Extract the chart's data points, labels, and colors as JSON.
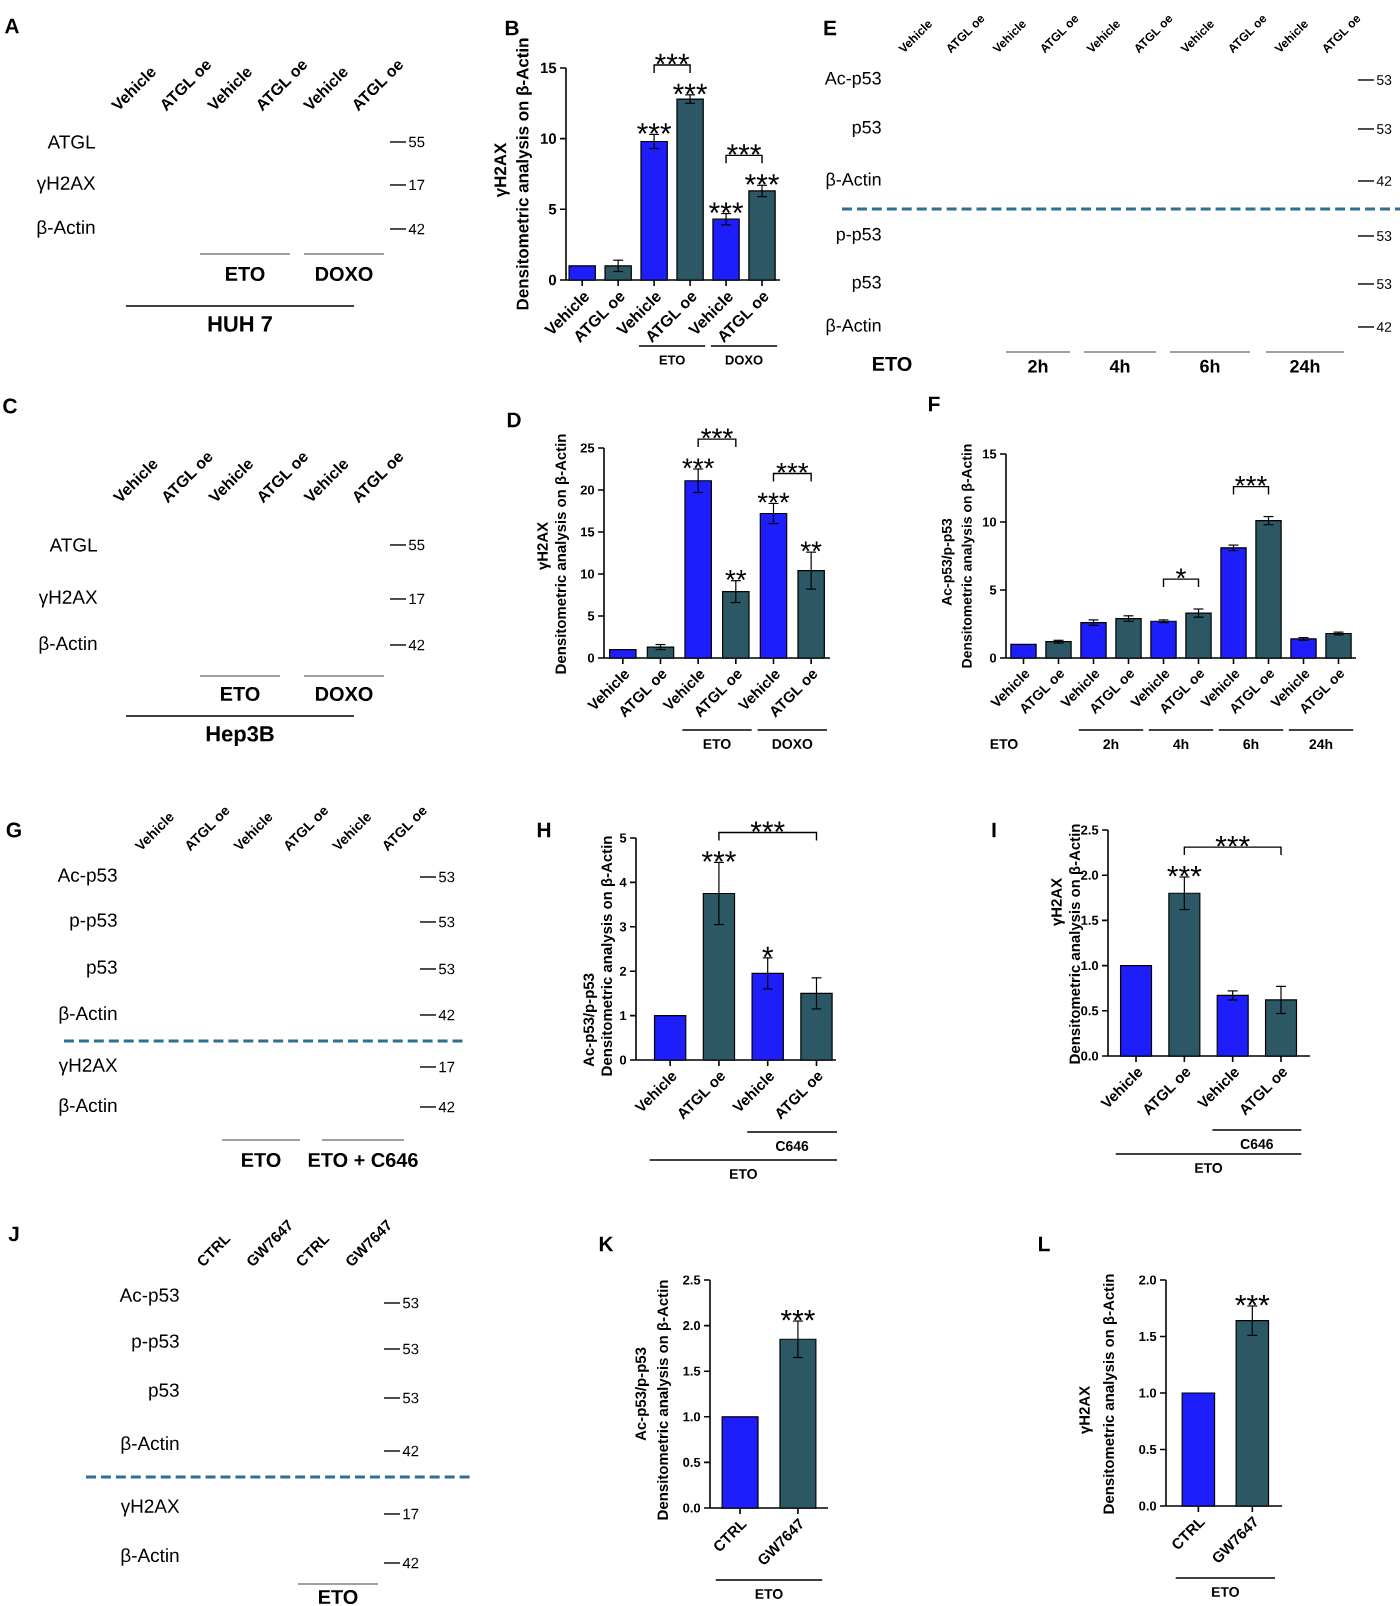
{
  "chart_data": [
    {
      "type": "other",
      "title": "A",
      "categories": [
        "Vehicle",
        "ATGL oe",
        "Vehicle",
        "ATGL oe",
        "Vehicle",
        "ATGL oe"
      ],
      "y_categories": [
        "ATGL",
        "γH2AX",
        "β-Actin"
      ],
      "y2_categories": [
        "55",
        "17",
        "42"
      ],
      "annotations": [
        "ETO",
        "DOXO",
        "HUH 7"
      ]
    },
    {
      "type": "bar",
      "title": "B",
      "ylabel": "Densitometric analysis on β-Actin",
      "categories": [
        "Vehicle",
        "ATGL oe",
        "Vehicle",
        "ATGL oe",
        "Vehicle",
        "ATGL oe"
      ],
      "values": [
        1.0,
        1.0,
        9.8,
        12.8,
        4.3,
        6.3
      ],
      "errors": [
        null,
        0.4,
        0.5,
        0.3,
        0.4,
        0.4
      ],
      "colors": [
        "#1e1efa",
        "#2b5864",
        "#1e1efa",
        "#2b5864",
        "#1e1efa",
        "#2b5864"
      ],
      "ylim": [
        0,
        15
      ],
      "yticks": [
        0,
        5,
        10,
        15
      ],
      "annotations": [
        "γH2AX",
        "***",
        "***",
        "***",
        "***",
        "***",
        "***",
        "ETO",
        "DOXO"
      ]
    },
    {
      "type": "other",
      "title": "E",
      "categories": [
        "Vehicle",
        "ATGL oe",
        "Vehicle",
        "ATGL oe",
        "Vehicle",
        "ATGL oe",
        "Vehicle",
        "ATGL oe",
        "Vehicle",
        "ATGL oe"
      ],
      "y_categories": [
        "Ac-p53",
        "p53",
        "β-Actin",
        "p-p53",
        "p53",
        "β-Actin"
      ],
      "y2_categories": [
        "53",
        "53",
        "42",
        "53",
        "53",
        "42"
      ],
      "annotations": [
        "ETO",
        "2h",
        "4h",
        "6h",
        "24h"
      ]
    },
    {
      "type": "other",
      "title": "C",
      "categories": [
        "Vehicle",
        "ATGL oe",
        "Vehicle",
        "ATGL oe",
        "Vehicle",
        "ATGL oe"
      ],
      "y_categories": [
        "ATGL",
        "γH2AX",
        "β-Actin"
      ],
      "y2_categories": [
        "55",
        "17",
        "42"
      ],
      "annotations": [
        "ETO",
        "DOXO",
        "Hep3B"
      ]
    },
    {
      "type": "bar",
      "title": "D",
      "ylabel": "Densitometric analysis on β-Actin",
      "categories": [
        "Vehicle",
        "ATGL oe",
        "Vehicle",
        "ATGL oe",
        "Vehicle",
        "ATGL oe"
      ],
      "values": [
        1.0,
        1.3,
        21.1,
        7.9,
        17.2,
        10.4
      ],
      "errors": [
        null,
        0.3,
        1.4,
        1.3,
        1.2,
        2.2
      ],
      "colors": [
        "#1e1efa",
        "#2b5864",
        "#1e1efa",
        "#2b5864",
        "#1e1efa",
        "#2b5864"
      ],
      "ylim": [
        0,
        25
      ],
      "yticks": [
        0,
        5,
        10,
        15,
        20,
        25
      ],
      "annotations": [
        "γH2AX",
        "***",
        "***",
        "**",
        "***",
        "***",
        "**",
        "ETO",
        "DOXO"
      ]
    },
    {
      "type": "bar",
      "title": "F",
      "ylabel": "Densitometric analysis on β-Actin",
      "categories": [
        "Vehicle",
        "ATGL oe",
        "Vehicle",
        "ATGL oe",
        "Vehicle",
        "ATGL oe",
        "Vehicle",
        "ATGL oe",
        "Vehicle",
        "ATGL oe"
      ],
      "values": [
        1.0,
        1.2,
        2.6,
        2.9,
        2.7,
        3.3,
        8.1,
        10.1,
        1.4,
        1.8
      ],
      "errors": [
        null,
        0.1,
        0.2,
        0.2,
        0.1,
        0.3,
        0.2,
        0.3,
        0.1,
        0.1
      ],
      "colors": [
        "#1e1efa",
        "#2b5864",
        "#1e1efa",
        "#2b5864",
        "#1e1efa",
        "#2b5864",
        "#1e1efa",
        "#2b5864",
        "#1e1efa",
        "#2b5864"
      ],
      "ylim": [
        0,
        15
      ],
      "yticks": [
        0,
        5,
        10,
        15
      ],
      "annotations": [
        "Ac-p53/p-p53",
        "*",
        "***",
        "ETO",
        "2h",
        "4h",
        "6h",
        "24h"
      ]
    },
    {
      "type": "other",
      "title": "G",
      "categories": [
        "Vehicle",
        "ATGL oe",
        "Vehicle",
        "ATGL oe",
        "Vehicle",
        "ATGL oe"
      ],
      "y_categories": [
        "Ac-p53",
        "p-p53",
        "p53",
        "β-Actin",
        "γH2AX",
        "β-Actin"
      ],
      "y2_categories": [
        "53",
        "53",
        "53",
        "42",
        "17",
        "42"
      ],
      "annotations": [
        "ETO",
        "ETO + C646"
      ]
    },
    {
      "type": "bar",
      "title": "H",
      "ylabel": "Densitometric analysis on β-Actin",
      "categories": [
        "Vehicle",
        "ATGL oe",
        "Vehicle",
        "ATGL oe"
      ],
      "values": [
        1.0,
        3.75,
        1.95,
        1.5
      ],
      "errors": [
        null,
        0.7,
        0.35,
        0.35
      ],
      "colors": [
        "#1e1efa",
        "#2b5864",
        "#1e1efa",
        "#2b5864"
      ],
      "ylim": [
        0,
        5
      ],
      "yticks": [
        0,
        1,
        2,
        3,
        4,
        5
      ],
      "annotations": [
        "Ac-p53/p-p53",
        "***",
        "***",
        "*",
        "C646",
        "ETO"
      ]
    },
    {
      "type": "bar",
      "title": "I",
      "ylabel": "Densitometric analysis on β-Actin",
      "categories": [
        "Vehicle",
        "ATGL oe",
        "Vehicle",
        "ATGL oe"
      ],
      "values": [
        1.0,
        1.8,
        0.67,
        0.62
      ],
      "errors": [
        null,
        0.18,
        0.05,
        0.15
      ],
      "colors": [
        "#1e1efa",
        "#2b5864",
        "#1e1efa",
        "#2b5864"
      ],
      "ylim": [
        0,
        2.5
      ],
      "yticks": [
        {
          "value": 0,
          "label": "0.0"
        },
        0.5,
        {
          "value": 1,
          "label": "1.0"
        },
        1.5,
        {
          "value": 2,
          "label": "2.0"
        },
        2.5
      ],
      "annotations": [
        "γH2AX",
        "***",
        "***",
        "C646",
        "ETO"
      ]
    },
    {
      "type": "other",
      "title": "J",
      "categories": [
        "CTRL",
        "GW7647",
        "CTRL",
        "GW7647"
      ],
      "y_categories": [
        "Ac-p53",
        "p-p53",
        "p53",
        "β-Actin",
        "γH2AX",
        "β-Actin"
      ],
      "y2_categories": [
        "53",
        "53",
        "53",
        "42",
        "17",
        "42"
      ],
      "annotations": [
        "ETO"
      ]
    },
    {
      "type": "bar",
      "title": "K",
      "ylabel": "Densitometric analysis on β-Actin",
      "categories": [
        "CTRL",
        "GW7647"
      ],
      "values": [
        1.0,
        1.85
      ],
      "errors": [
        null,
        0.2
      ],
      "colors": [
        "#1e1efa",
        "#2b5864"
      ],
      "ylim": [
        0,
        2.5
      ],
      "yticks": [
        {
          "value": 0,
          "label": "0.0"
        },
        0.5,
        {
          "value": 1,
          "label": "1.0"
        },
        1.5,
        {
          "value": 2,
          "label": "2.0"
        },
        2.5
      ],
      "annotations": [
        "Ac-p53/p-p53",
        "***",
        "ETO"
      ]
    },
    {
      "type": "bar",
      "title": "L",
      "ylabel": "Densitometric analysis on β-Actin",
      "categories": [
        "CTRL",
        "GW7647"
      ],
      "values": [
        1.0,
        1.64
      ],
      "errors": [
        null,
        0.13
      ],
      "colors": [
        "#1e1efa",
        "#2b5864"
      ],
      "ylim": [
        0,
        2.0
      ],
      "yticks": [
        {
          "value": 0,
          "label": "0.0"
        },
        0.5,
        {
          "value": 1,
          "label": "1.0"
        },
        1.5,
        {
          "value": 2,
          "label": "2.0"
        }
      ],
      "annotations": [
        "γH2AX",
        "***",
        "ETO"
      ]
    }
  ]
}
